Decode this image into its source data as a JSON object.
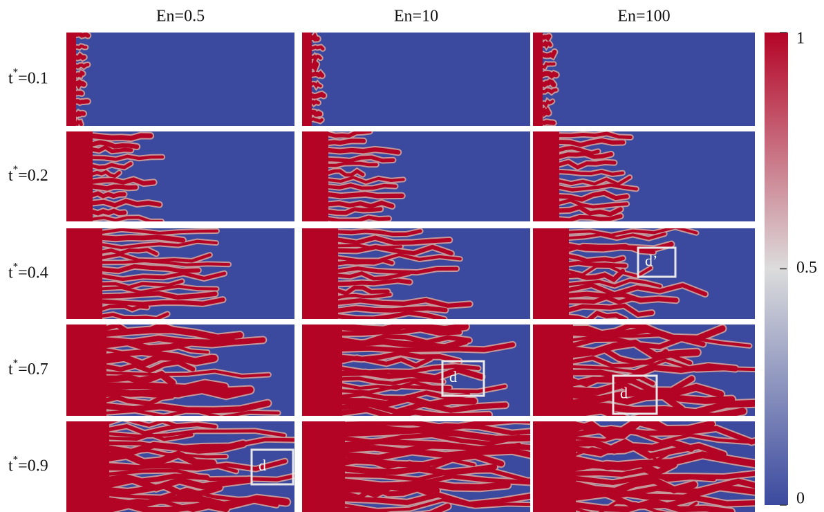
{
  "column_headers": [
    "En=0.5",
    "En=10",
    "En=100"
  ],
  "rows": [
    {
      "label": {
        "base": "t",
        "sup": "*",
        "rest": "=0.1"
      },
      "boxes": []
    },
    {
      "label": {
        "base": "t",
        "sup": "*",
        "rest": "=0.2"
      },
      "boxes": []
    },
    {
      "label": {
        "base": "t",
        "sup": "*",
        "rest": "=0.4"
      },
      "boxes": [
        {
          "column": 2,
          "label": "d’"
        }
      ]
    },
    {
      "label": {
        "base": "t",
        "sup": "*",
        "rest": "=0.7"
      },
      "boxes": [
        {
          "column": 1,
          "label": "d"
        },
        {
          "column": 2,
          "label": "d"
        }
      ]
    },
    {
      "label": {
        "base": "t",
        "sup": "*",
        "rest": "=0.9"
      },
      "boxes": [
        {
          "column": 0,
          "label": "d"
        }
      ]
    }
  ],
  "colorbar": {
    "range": [
      0,
      1
    ],
    "ticks": [
      1,
      0.5,
      0
    ],
    "colors": {
      "high": "#b40426",
      "mid": "#dcdcdc",
      "low": "#3b4a9f"
    }
  }
}
